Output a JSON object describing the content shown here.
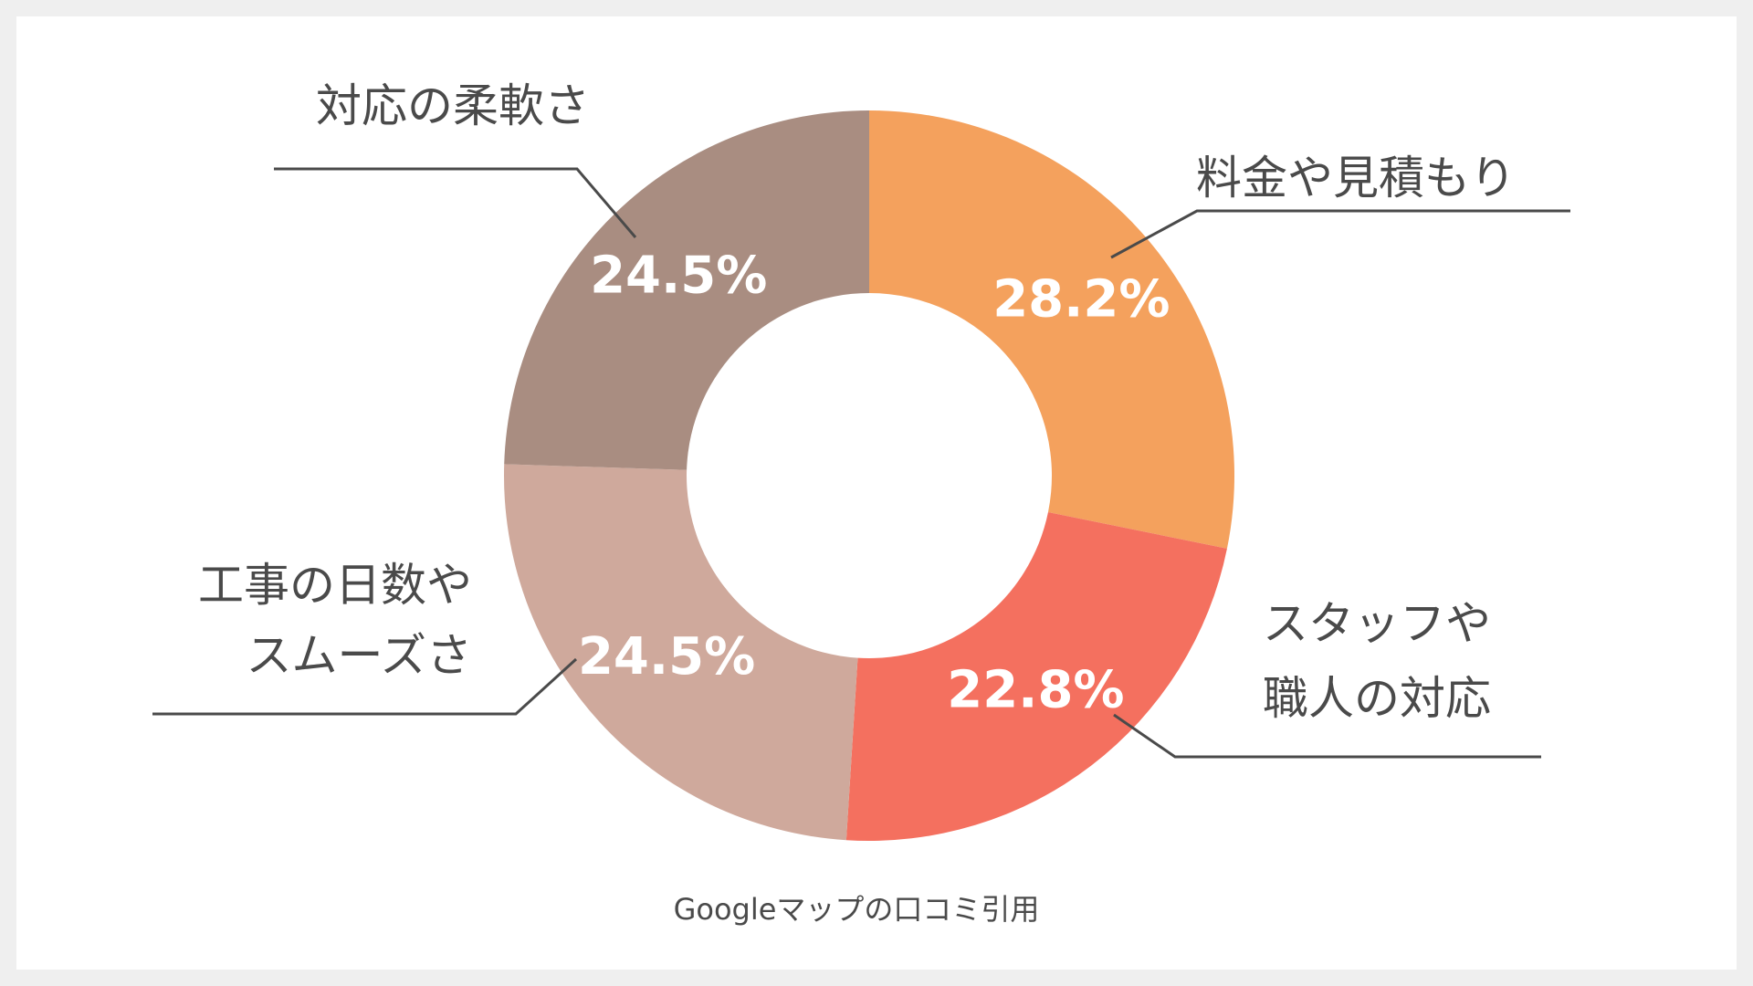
{
  "chart_data": {
    "type": "pie",
    "donut": true,
    "slices": [
      {
        "label_lines": [
          "料金や見積もり"
        ],
        "value": 28.2,
        "value_label": "28.2%",
        "color": "#f4a15d"
      },
      {
        "label_lines": [
          "スタッフや",
          "職人の対応"
        ],
        "value": 22.8,
        "value_label": "22.8%",
        "color": "#f4705f"
      },
      {
        "label_lines": [
          "工事の日数や",
          "スムーズさ"
        ],
        "value": 24.5,
        "value_label": "24.5%",
        "color": "#cfa99c"
      },
      {
        "label_lines": [
          "対応の柔軟さ"
        ],
        "value": 24.5,
        "value_label": "24.5%",
        "color": "#a98d81"
      }
    ],
    "source": "Googleマップの口コミ引用"
  }
}
